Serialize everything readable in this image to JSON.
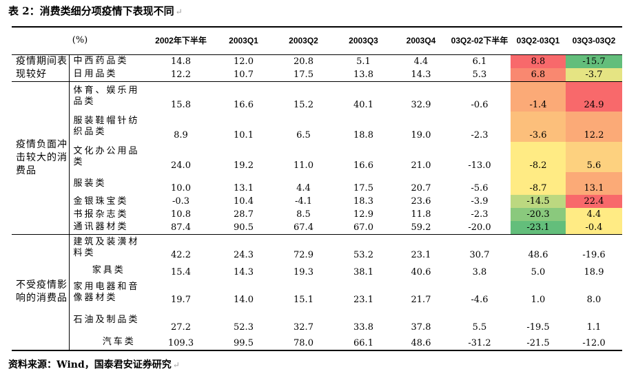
{
  "title": "表 2：消费类细分项疫情下表现不同",
  "return_mark": "↵",
  "source": "资料来源：Wind，国泰君安证券研究",
  "colors": {
    "red": "#f8696b",
    "orange_red": "#f98870",
    "orange": "#fbaa77",
    "light_orange": "#fcbf7b",
    "yellow_orange": "#fdd17f",
    "yellow": "#ffeb84",
    "yellow_green": "#e5e483",
    "light_green": "#bcd880",
    "green": "#8ac97d",
    "dark_green": "#63be7b"
  },
  "headers": {
    "unit": "(%)",
    "col1": "2002年下半年",
    "col2": "2003Q1",
    "col3": "2003Q2",
    "col4": "2003Q3",
    "col5": "2003Q4",
    "col6": "03Q2-02下半年",
    "col7": "03Q2-03Q1",
    "col8": "03Q3-03Q2"
  },
  "categories": {
    "better": "疫情期间表现较好",
    "hit": "疫情负面冲击较大的消费品",
    "unaffected": "不受疫情影响的消费品"
  },
  "rows": [
    {
      "item": "中西药品类",
      "v": [
        "14.8",
        "12.0",
        "20.8",
        "5.1",
        "4.4",
        "6.1",
        "8.8",
        "-15.7"
      ],
      "c7": "red",
      "c8": "dark_green"
    },
    {
      "item": "日用品类",
      "v": [
        "12.2",
        "10.7",
        "17.5",
        "13.8",
        "14.3",
        "5.3",
        "6.8",
        "-3.7"
      ],
      "c7": "orange_red",
      "c8": "yellow_green"
    },
    {
      "item": "体育、娱乐用品类",
      "v": [
        "15.8",
        "16.6",
        "15.2",
        "40.1",
        "32.9",
        "-0.6",
        "-1.4",
        "24.9"
      ],
      "c7": "orange",
      "c8": "red"
    },
    {
      "item": "服装鞋帽针纺织品类",
      "v": [
        "8.9",
        "10.1",
        "6.5",
        "18.8",
        "19.0",
        "-2.3",
        "-3.6",
        "12.2"
      ],
      "c7": "light_orange",
      "c8": "orange"
    },
    {
      "item": "文化办公用品类",
      "v": [
        "24.0",
        "19.2",
        "11.0",
        "16.6",
        "21.0",
        "-13.0",
        "-8.2",
        "5.6"
      ],
      "c7": "yellow",
      "c8": "yellow_orange"
    },
    {
      "item": "服装类",
      "v": [
        "10.0",
        "13.1",
        "4.4",
        "17.5",
        "20.7",
        "-5.6",
        "-8.7",
        "13.1"
      ],
      "c7": "yellow",
      "c8": "orange"
    },
    {
      "item": "金银珠宝类",
      "v": [
        "-0.3",
        "10.4",
        "-4.1",
        "18.3",
        "23.6",
        "-3.9",
        "-14.5",
        "22.4"
      ],
      "c7": "light_green",
      "c8": "red"
    },
    {
      "item": "书报杂志类",
      "v": [
        "10.8",
        "28.7",
        "8.5",
        "12.9",
        "11.8",
        "-2.3",
        "-20.3",
        "4.4"
      ],
      "c7": "green",
      "c8": "yellow"
    },
    {
      "item": "通讯器材类",
      "v": [
        "87.4",
        "90.5",
        "67.4",
        "67.0",
        "59.2",
        "-20.0",
        "-23.1",
        "-0.4"
      ],
      "c7": "dark_green",
      "c8": "yellow"
    },
    {
      "item": "建筑及装潢材料类",
      "v": [
        "42.2",
        "24.3",
        "72.9",
        "53.2",
        "23.1",
        "30.7",
        "48.6",
        "-19.6"
      ]
    },
    {
      "item": "家具类",
      "v": [
        "15.4",
        "14.3",
        "19.3",
        "38.1",
        "40.6",
        "3.8",
        "5.0",
        "18.9"
      ]
    },
    {
      "item": "家用电器和音像器材类",
      "v": [
        "19.7",
        "14.0",
        "15.1",
        "23.1",
        "21.7",
        "-4.6",
        "1.0",
        "8.0"
      ]
    },
    {
      "item": "石油及制品类",
      "v": [
        "27.2",
        "52.3",
        "32.7",
        "33.8",
        "37.8",
        "5.5",
        "-19.5",
        "1.1"
      ]
    },
    {
      "item": "汽车类",
      "v": [
        "109.3",
        "99.5",
        "78.0",
        "66.1",
        "48.6",
        "-31.2",
        "-21.5",
        "-12.0"
      ]
    }
  ]
}
